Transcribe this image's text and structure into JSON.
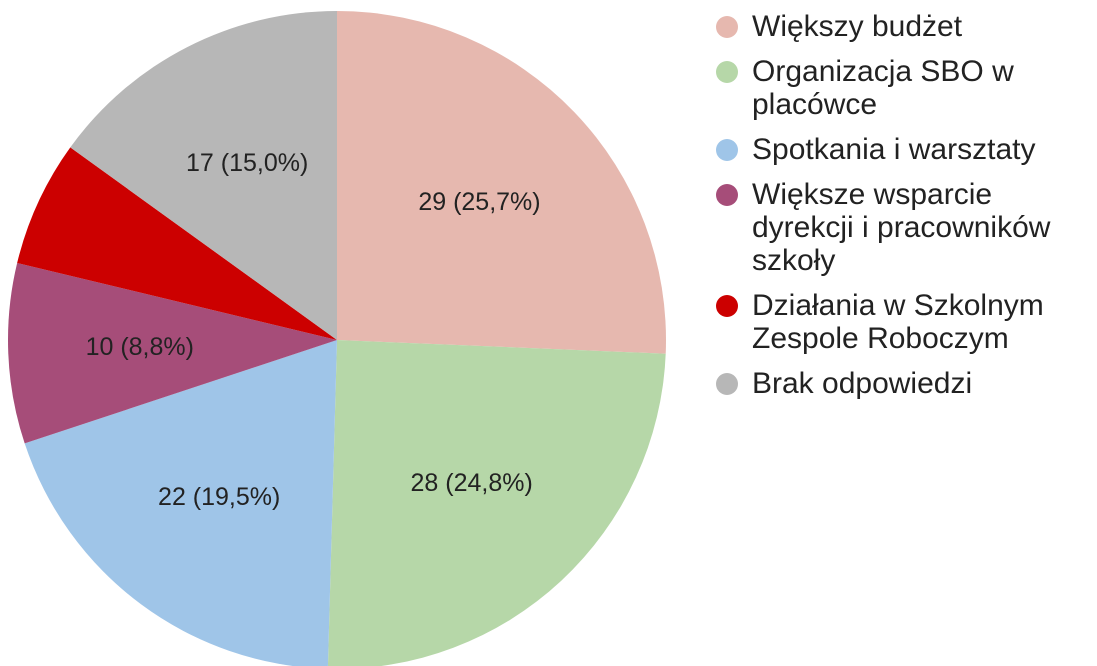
{
  "chart_data": {
    "type": "pie",
    "categories": [
      "Większy budżet",
      "Organizacja SBO w placówce",
      "Spotkania i warsztaty",
      "Większe wsparcie dyrekcji i pracowników szkoły",
      "Działania w Szkolnym Zespole Roboczym",
      "Brak odpowiedzi"
    ],
    "values": [
      29,
      28,
      22,
      10,
      7,
      17
    ],
    "value_labels": [
      "29 (25,7%)",
      "28 (24,8%)",
      "22 (19,5%)",
      "10 (8,8%)",
      null,
      "17 (15,0%)"
    ],
    "colors": [
      "#e6b8af",
      "#b6d7a8",
      "#9fc5e8",
      "#a64d79",
      "#cc0000",
      "#b7b7b7"
    ],
    "legend": "right"
  }
}
